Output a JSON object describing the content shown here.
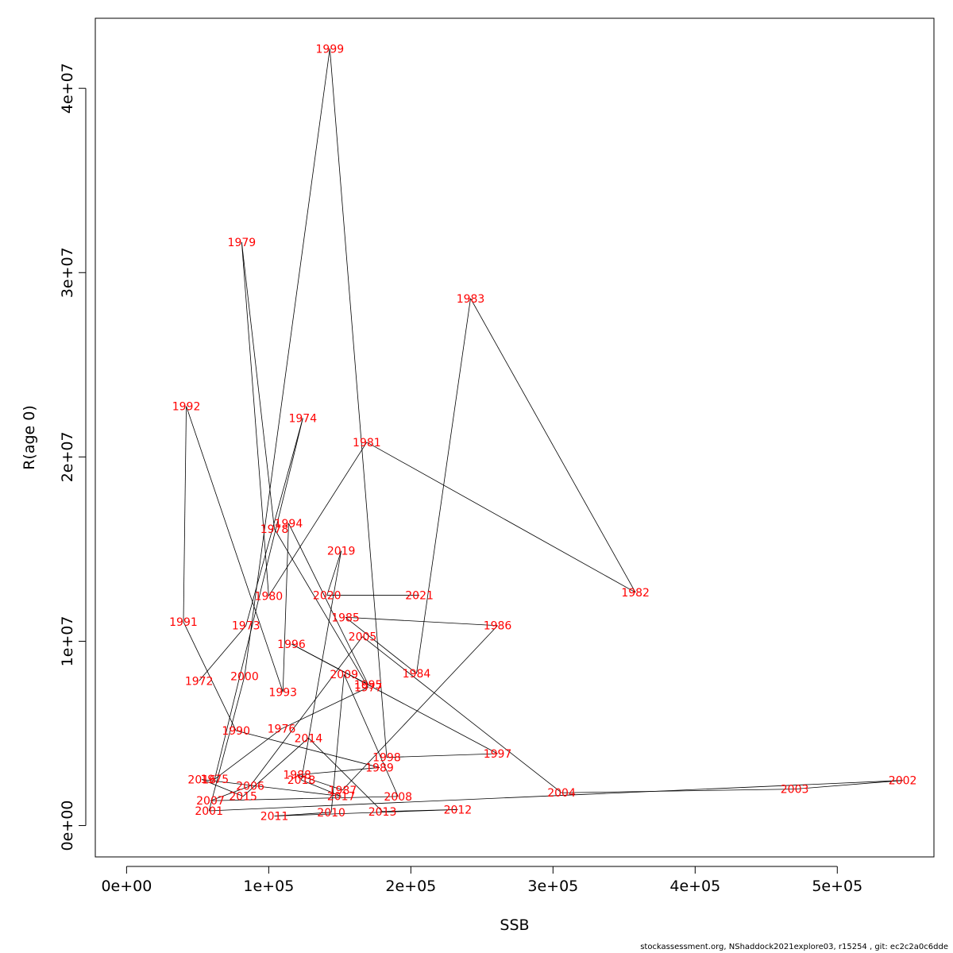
{
  "footnote": "stockassessment.org, NShaddock2021explore03, r15254 , git: ec2c2a0c6dde",
  "chart_data": {
    "type": "line",
    "xlabel": "SSB",
    "ylabel": "R(age 0)",
    "xlim": [
      -22000,
      568000
    ],
    "ylim": [
      -1700000,
      43800000
    ],
    "xticks": [
      0,
      100000,
      200000,
      300000,
      400000,
      500000
    ],
    "xtick_labels": [
      "0e+00",
      "1e+05",
      "2e+05",
      "3e+05",
      "4e+05",
      "5e+05"
    ],
    "yticks": [
      0,
      10000000,
      20000000,
      30000000,
      40000000
    ],
    "ytick_labels": [
      "0e+00",
      "1e+07",
      "2e+07",
      "3e+07",
      "4e+07"
    ],
    "line_color": "#000000",
    "label_color": "#ff0000",
    "grid": false,
    "series": [
      {
        "points": [
          {
            "year": "1972",
            "x": 51000,
            "y": 7850000
          },
          {
            "year": "1973",
            "x": 84000,
            "y": 10850000
          },
          {
            "year": "1974",
            "x": 124000,
            "y": 22100000
          },
          {
            "year": "1975",
            "x": 62000,
            "y": 2520000
          },
          {
            "year": "1976",
            "x": 109000,
            "y": 5250000
          },
          {
            "year": "1977",
            "x": 170000,
            "y": 7500000
          },
          {
            "year": "1978",
            "x": 104000,
            "y": 16100000
          },
          {
            "year": "1979",
            "x": 81000,
            "y": 31650000
          },
          {
            "year": "1980",
            "x": 100000,
            "y": 12450000
          },
          {
            "year": "1981",
            "x": 169000,
            "y": 20800000
          },
          {
            "year": "1982",
            "x": 358000,
            "y": 12650000
          },
          {
            "year": "1983",
            "x": 242000,
            "y": 28600000
          },
          {
            "year": "1984",
            "x": 204000,
            "y": 8250000
          },
          {
            "year": "1985",
            "x": 154000,
            "y": 11300000
          },
          {
            "year": "1986",
            "x": 261000,
            "y": 10850000
          },
          {
            "year": "1987",
            "x": 152000,
            "y": 1930000
          },
          {
            "year": "1988",
            "x": 120000,
            "y": 2750000
          },
          {
            "year": "1989",
            "x": 178000,
            "y": 3150000
          },
          {
            "year": "1990",
            "x": 77000,
            "y": 5150000
          },
          {
            "year": "1991",
            "x": 40000,
            "y": 11050000
          },
          {
            "year": "1992",
            "x": 42000,
            "y": 22750000
          },
          {
            "year": "1993",
            "x": 110000,
            "y": 7250000
          },
          {
            "year": "1994",
            "x": 114000,
            "y": 16400000
          },
          {
            "year": "1995",
            "x": 170000,
            "y": 7650000
          },
          {
            "year": "1996",
            "x": 116000,
            "y": 9850000
          },
          {
            "year": "1997",
            "x": 261000,
            "y": 3900000
          },
          {
            "year": "1998",
            "x": 183000,
            "y": 3700000
          },
          {
            "year": "1999",
            "x": 143000,
            "y": 42150000
          },
          {
            "year": "2000",
            "x": 83000,
            "y": 8100000
          },
          {
            "year": "2001",
            "x": 58000,
            "y": 800000
          },
          {
            "year": "2002",
            "x": 546000,
            "y": 2450000
          },
          {
            "year": "2003",
            "x": 470000,
            "y": 1980000
          },
          {
            "year": "2004",
            "x": 306000,
            "y": 1780000
          },
          {
            "year": "2005",
            "x": 166000,
            "y": 10250000
          },
          {
            "year": "2006",
            "x": 87000,
            "y": 2150000
          },
          {
            "year": "2007",
            "x": 59000,
            "y": 1350000
          },
          {
            "year": "2008",
            "x": 191000,
            "y": 1580000
          },
          {
            "year": "2009",
            "x": 153000,
            "y": 8200000
          },
          {
            "year": "2010",
            "x": 144000,
            "y": 720000
          },
          {
            "year": "2011",
            "x": 104000,
            "y": 520000
          },
          {
            "year": "2012",
            "x": 233000,
            "y": 870000
          },
          {
            "year": "2013",
            "x": 180000,
            "y": 760000
          },
          {
            "year": "2014",
            "x": 128000,
            "y": 4750000
          },
          {
            "year": "2015",
            "x": 82000,
            "y": 1590000
          },
          {
            "year": "2016",
            "x": 53000,
            "y": 2500000
          },
          {
            "year": "2017",
            "x": 151000,
            "y": 1590000
          },
          {
            "year": "2018",
            "x": 123000,
            "y": 2470000
          },
          {
            "year": "2019",
            "x": 151000,
            "y": 14900000
          },
          {
            "year": "2020",
            "x": 141000,
            "y": 12500000
          },
          {
            "year": "2021",
            "x": 206000,
            "y": 12500000
          }
        ]
      }
    ]
  }
}
